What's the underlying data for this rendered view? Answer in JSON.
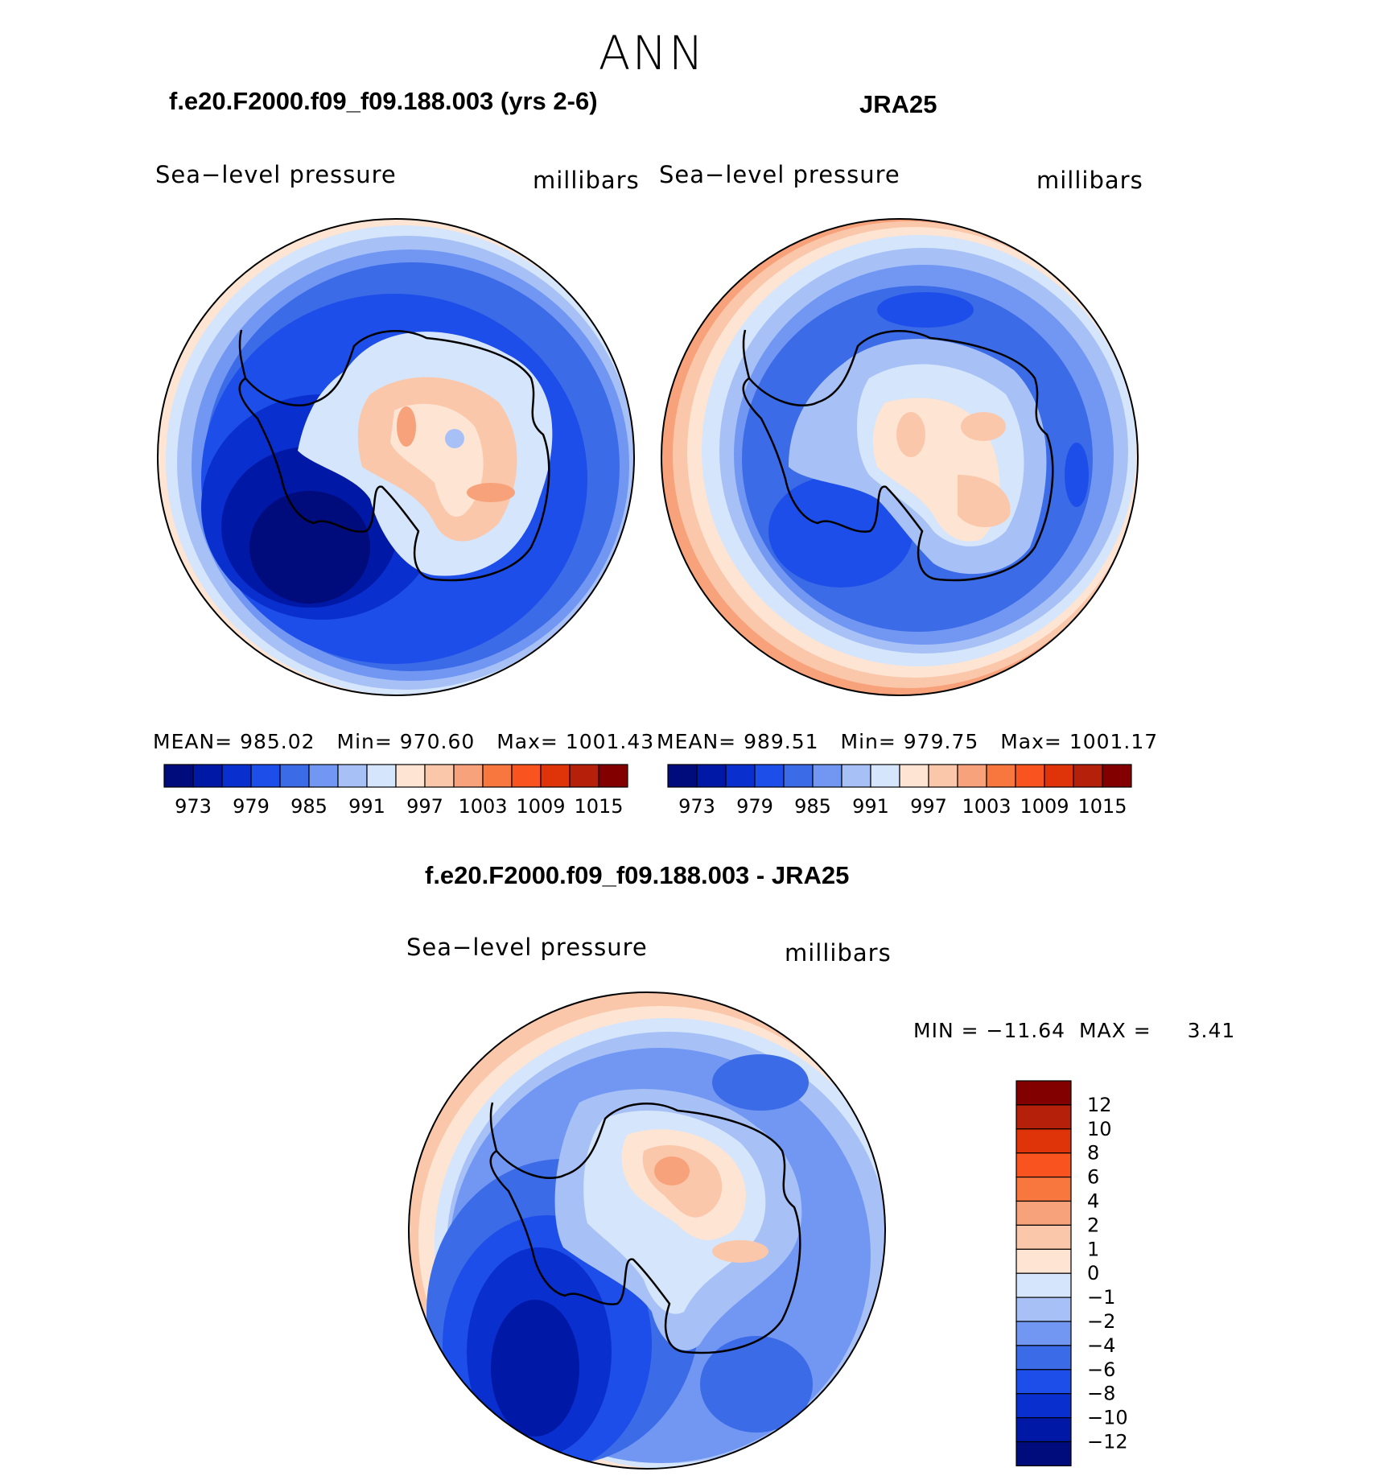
{
  "season": "ANN",
  "panels": [
    {
      "case_title": "f.e20.F2000.f09_f09.188.003 (yrs 2-6)",
      "variable": "Sea−level pressure",
      "units": "millibars",
      "stats": {
        "mean_label": "MEAN=",
        "mean": "985.02",
        "min_label": "Min=",
        "min": "970.60",
        "max_label": "Max=",
        "max": "1001.43"
      }
    },
    {
      "case_title": "JRA25",
      "variable": "Sea−level pressure",
      "units": "millibars",
      "stats": {
        "mean_label": "MEAN=",
        "mean": "989.51",
        "min_label": "Min=",
        "min": "979.75",
        "max_label": "Max=",
        "max": "1001.17"
      }
    }
  ],
  "abs_colorbar": {
    "colors": [
      "#000c7c",
      "#0018a6",
      "#0a2fcf",
      "#1e4ee9",
      "#3b6be6",
      "#7197f3",
      "#a7c1f7",
      "#d5e5fb",
      "#fde4d3",
      "#fbc7aa",
      "#f8a27b",
      "#f7773f",
      "#f9531f",
      "#df330a",
      "#b4200a",
      "#830000"
    ],
    "labels": [
      "973",
      "979",
      "985",
      "991",
      "997",
      "1003",
      "1009",
      "1015"
    ]
  },
  "diff_panel": {
    "title": "f.e20.F2000.f09_f09.188.003 - JRA25",
    "variable": "Sea−level pressure",
    "units": "millibars",
    "min_label": "MIN =",
    "min": "−11.64",
    "max_label": "MAX =",
    "max": "3.41"
  },
  "diff_colorbar": {
    "colors": [
      "#830000",
      "#b4200a",
      "#df330a",
      "#f9531f",
      "#f7773f",
      "#f8a27b",
      "#fbc7aa",
      "#fde4d3",
      "#d5e5fb",
      "#a7c1f7",
      "#7197f3",
      "#3b6be6",
      "#1e4ee9",
      "#0a2fcf",
      "#0018a6",
      "#000c7c"
    ],
    "labels": [
      "12",
      "10",
      "8",
      "6",
      "4",
      "2",
      "1",
      "0",
      "−1",
      "−2",
      "−4",
      "−6",
      "−8",
      "−10",
      "−12"
    ]
  }
}
